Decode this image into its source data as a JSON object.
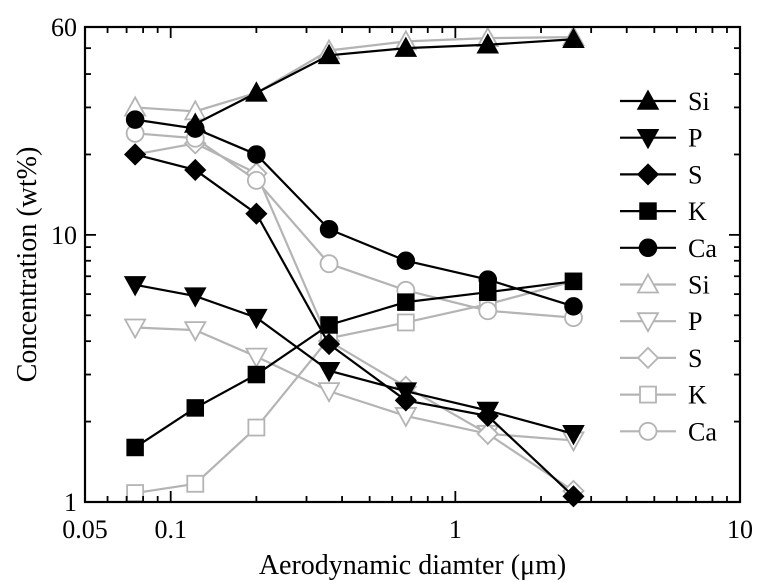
{
  "chart_data": {
    "type": "line",
    "xlabel": "Aerodynamic diamter (μm)",
    "ylabel": "Concentration (wt%)",
    "xscale": "log",
    "yscale": "log",
    "xlim": [
      0.05,
      10
    ],
    "ylim": [
      1,
      60
    ],
    "x_tick_labels": [
      "0.05",
      "0.1",
      "1",
      "10"
    ],
    "x_tick_values": [
      0.05,
      0.1,
      1,
      10
    ],
    "y_tick_labels": [
      "1",
      "10",
      "60"
    ],
    "y_tick_values": [
      1,
      10,
      60
    ],
    "grid": false,
    "legend_position": "right",
    "x": [
      0.075,
      0.122,
      0.2,
      0.36,
      0.67,
      1.3,
      2.6
    ],
    "series": [
      {
        "name": "Si",
        "group": "black",
        "marker": "triangle-up",
        "filled": true,
        "color": "#000000",
        "values": [
          null,
          26,
          34,
          47,
          50,
          51.5,
          54
        ]
      },
      {
        "name": "P",
        "group": "black",
        "marker": "triangle-down",
        "filled": true,
        "color": "#000000",
        "values": [
          6.5,
          5.9,
          4.9,
          3.1,
          2.6,
          2.2,
          1.8
        ]
      },
      {
        "name": "S",
        "group": "black",
        "marker": "diamond",
        "filled": true,
        "color": "#000000",
        "values": [
          20,
          17.5,
          12,
          3.9,
          2.4,
          2.1,
          1.05
        ]
      },
      {
        "name": "K",
        "group": "black",
        "marker": "square",
        "filled": true,
        "color": "#000000",
        "values": [
          1.6,
          2.25,
          3.0,
          4.6,
          5.6,
          6.1,
          6.7
        ]
      },
      {
        "name": "Ca",
        "group": "black",
        "marker": "circle",
        "filled": true,
        "color": "#000000",
        "values": [
          27,
          25,
          20,
          10.5,
          8.0,
          6.8,
          5.4
        ]
      },
      {
        "name": "Si",
        "group": "gray",
        "marker": "triangle-up",
        "filled": false,
        "color": "#b4b4b4",
        "values": [
          30,
          29,
          34,
          49,
          53,
          54.5,
          55
        ]
      },
      {
        "name": "P",
        "group": "gray",
        "marker": "triangle-down",
        "filled": false,
        "color": "#b4b4b4",
        "values": [
          4.5,
          4.4,
          3.5,
          2.6,
          2.1,
          1.8,
          1.7
        ]
      },
      {
        "name": "S",
        "group": "gray",
        "marker": "diamond",
        "filled": false,
        "color": "#b4b4b4",
        "values": [
          20,
          22,
          17,
          4.0,
          2.7,
          1.8,
          1.1
        ]
      },
      {
        "name": "K",
        "group": "gray",
        "marker": "square",
        "filled": false,
        "color": "#b4b4b4",
        "values": [
          1.08,
          1.17,
          1.9,
          4.1,
          4.7,
          5.5,
          6.7
        ]
      },
      {
        "name": "Ca",
        "group": "gray",
        "marker": "circle",
        "filled": false,
        "color": "#b4b4b4",
        "values": [
          24,
          23,
          16,
          7.8,
          6.2,
          5.2,
          4.9
        ]
      }
    ]
  }
}
